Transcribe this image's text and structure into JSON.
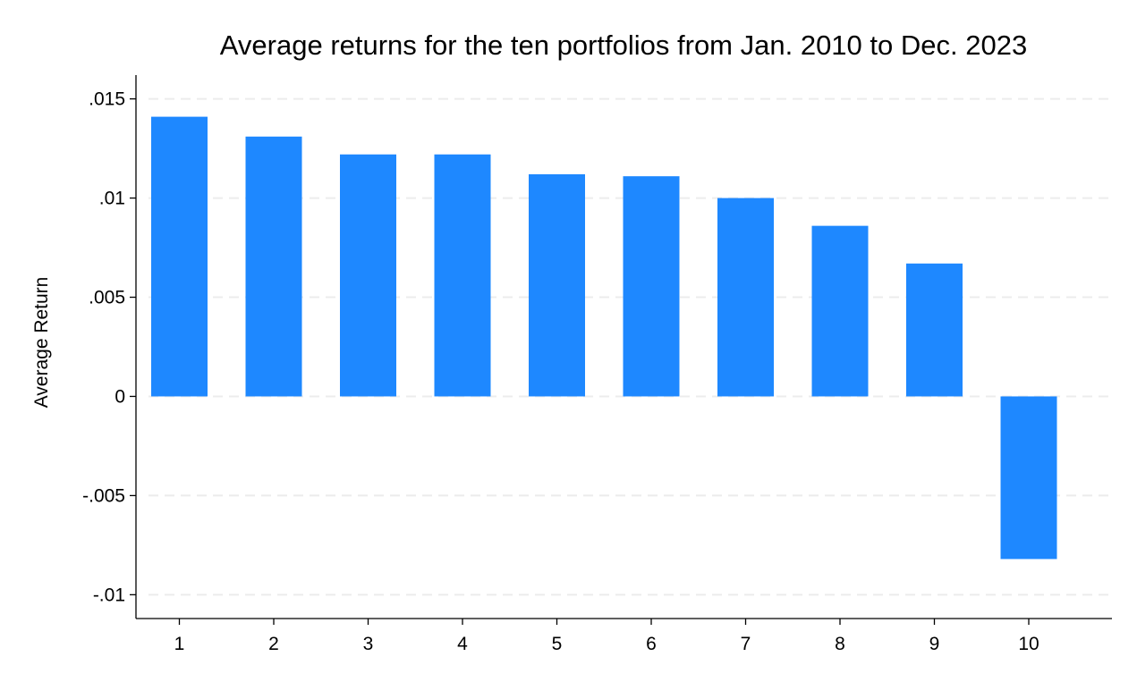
{
  "chart_data": {
    "type": "bar",
    "title": "Average returns for the ten portfolios from Jan. 2010 to Dec. 2023",
    "xlabel": "",
    "ylabel": "Average Return",
    "categories": [
      "1",
      "2",
      "3",
      "4",
      "5",
      "6",
      "7",
      "8",
      "9",
      "10"
    ],
    "values": [
      0.0141,
      0.0131,
      0.0122,
      0.0122,
      0.0112,
      0.0111,
      0.01,
      0.0086,
      0.0067,
      -0.0082
    ],
    "ylim": [
      -0.0112,
      0.0162
    ],
    "yticks": [
      {
        "value": 0.015,
        "label": ".015"
      },
      {
        "value": 0.01,
        "label": ".01"
      },
      {
        "value": 0.005,
        "label": ".005"
      },
      {
        "value": 0,
        "label": "0"
      },
      {
        "value": -0.005,
        "label": "-.005"
      },
      {
        "value": -0.01,
        "label": "-.01"
      }
    ],
    "grid": true,
    "legend": "none",
    "colors": {
      "bar": "#1e88ff",
      "grid": "#ececec",
      "axis": "#000000"
    }
  }
}
